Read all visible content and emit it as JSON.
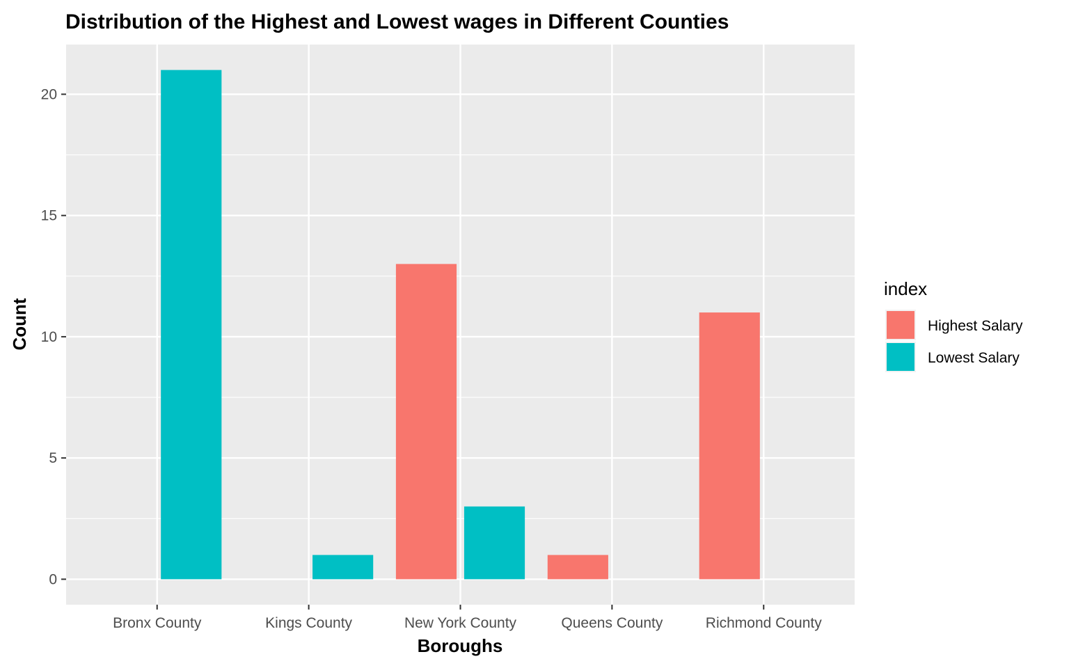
{
  "chart_data": {
    "type": "bar",
    "title": "Distribution of the Highest and Lowest wages in Different Counties",
    "xlabel": "Boroughs",
    "ylabel": "Count",
    "categories": [
      "Bronx County",
      "Kings County",
      "New York County",
      "Queens County",
      "Richmond County"
    ],
    "series": [
      {
        "name": "Highest Salary",
        "color": "#F8766D",
        "values": [
          0,
          0,
          13,
          1,
          11
        ]
      },
      {
        "name": "Lowest Salary",
        "color": "#00BFC4",
        "values": [
          21,
          1,
          3,
          0,
          0
        ]
      }
    ],
    "ylim": [
      -1.05,
      22.05
    ],
    "yticks": [
      0,
      5,
      10,
      15,
      20
    ],
    "grid": true,
    "legend": {
      "title": "index",
      "position": "right"
    },
    "panel_background": "#EBEBEB"
  }
}
